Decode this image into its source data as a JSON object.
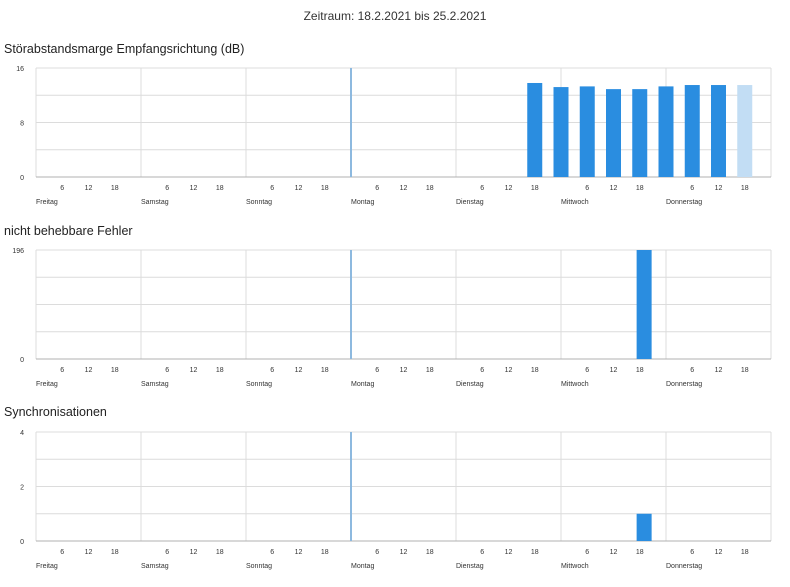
{
  "period": {
    "label": "Zeitraum: 18.2.2021 bis 25.2.2021"
  },
  "colors": {
    "bar": "#2a8de0",
    "bar_current": "#c2ddf4",
    "grid": "#dcdcdc",
    "axis": "#b0b0b0",
    "marker": "#8db9df"
  },
  "day_labels": [
    "Freitag",
    "Samstag",
    "Sonntag",
    "Montag",
    "Dienstag",
    "Mittwoch",
    "Donnerstag"
  ],
  "hour_labels": [
    "6",
    "12",
    "18"
  ],
  "chart_data": [
    {
      "type": "bar",
      "title": "Störabstandsmarge Empfangsrichtung (dB)",
      "ylim": [
        0,
        16
      ],
      "yticks": [
        "0",
        "8",
        "16"
      ],
      "x_unit": "hours since Friday 00:00",
      "bar_width_hours": 4,
      "grid": true,
      "series": [
        {
          "values": [
            {
              "x": 114,
              "y": 13.8
            },
            {
              "x": 120,
              "y": 13.2
            },
            {
              "x": 126,
              "y": 13.3
            },
            {
              "x": 132,
              "y": 12.9
            },
            {
              "x": 138,
              "y": 12.9
            },
            {
              "x": 144,
              "y": 13.3
            },
            {
              "x": 150,
              "y": 13.5
            },
            {
              "x": 156,
              "y": 13.5
            },
            {
              "x": 162,
              "y": 13.5,
              "current": true
            }
          ]
        }
      ]
    },
    {
      "type": "bar",
      "title": "nicht behebbare Fehler",
      "ylim": [
        0,
        196
      ],
      "yticks": [
        "0",
        "196"
      ],
      "x_unit": "hours since Friday 00:00",
      "bar_width_hours": 4,
      "grid": true,
      "series": [
        {
          "values": [
            {
              "x": 139,
              "y": 196
            }
          ]
        }
      ]
    },
    {
      "type": "bar",
      "title": "Synchronisationen",
      "ylim": [
        0,
        4
      ],
      "yticks": [
        "0",
        "2",
        "4"
      ],
      "x_unit": "hours since Friday 00:00",
      "bar_width_hours": 4,
      "grid": true,
      "series": [
        {
          "values": [
            {
              "x": 139,
              "y": 1
            }
          ]
        }
      ]
    }
  ]
}
